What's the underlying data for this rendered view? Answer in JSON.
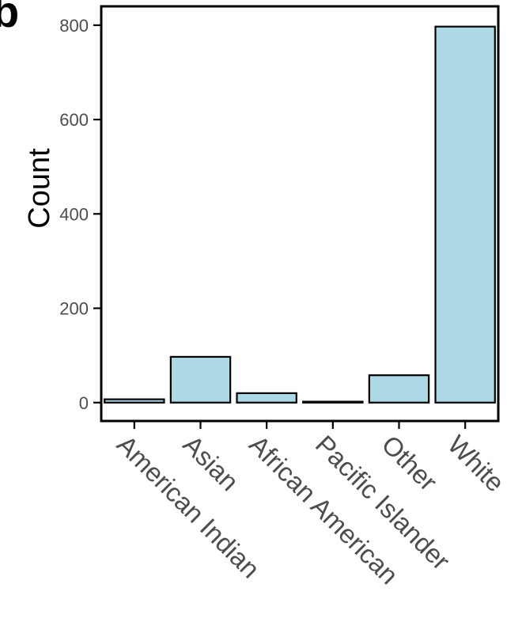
{
  "panel_label": "b",
  "chart_data": {
    "type": "bar",
    "categories": [
      "American Indian",
      "Asian",
      "African American",
      "Pacific Islander",
      "Other",
      "White"
    ],
    "values": [
      7,
      97,
      20,
      2,
      58,
      797
    ],
    "title": "",
    "xlabel": "",
    "ylabel": "Count",
    "ylim": [
      -39,
      840
    ],
    "yticks": [
      0,
      200,
      400,
      600,
      800
    ],
    "bar_fill": "#add8e6",
    "bar_stroke": "#000000",
    "grid": false,
    "legend": "none"
  }
}
